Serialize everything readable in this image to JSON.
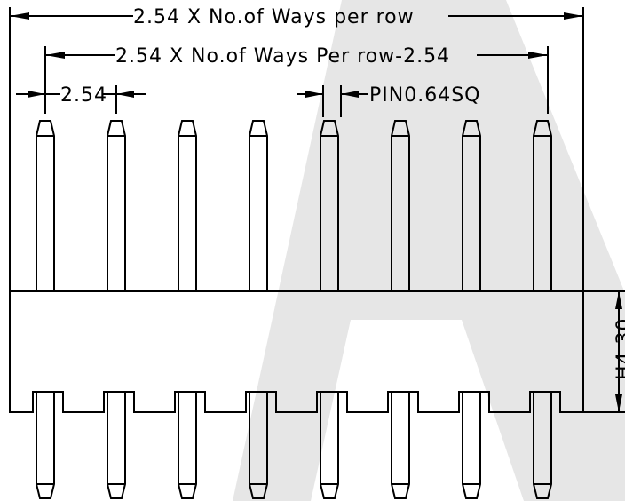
{
  "dimensions": {
    "total_width": "2.54 X No.of Ways per row",
    "pitch_span": "2.54 X No.of Ways Per row-2.54",
    "pitch": "2.54",
    "pin_size": "PIN0.64SQ",
    "body_height": "H4.30"
  },
  "drawing": {
    "pin_count": 8,
    "watermark_color": "#e6e6e6",
    "line_color": "#000000"
  }
}
